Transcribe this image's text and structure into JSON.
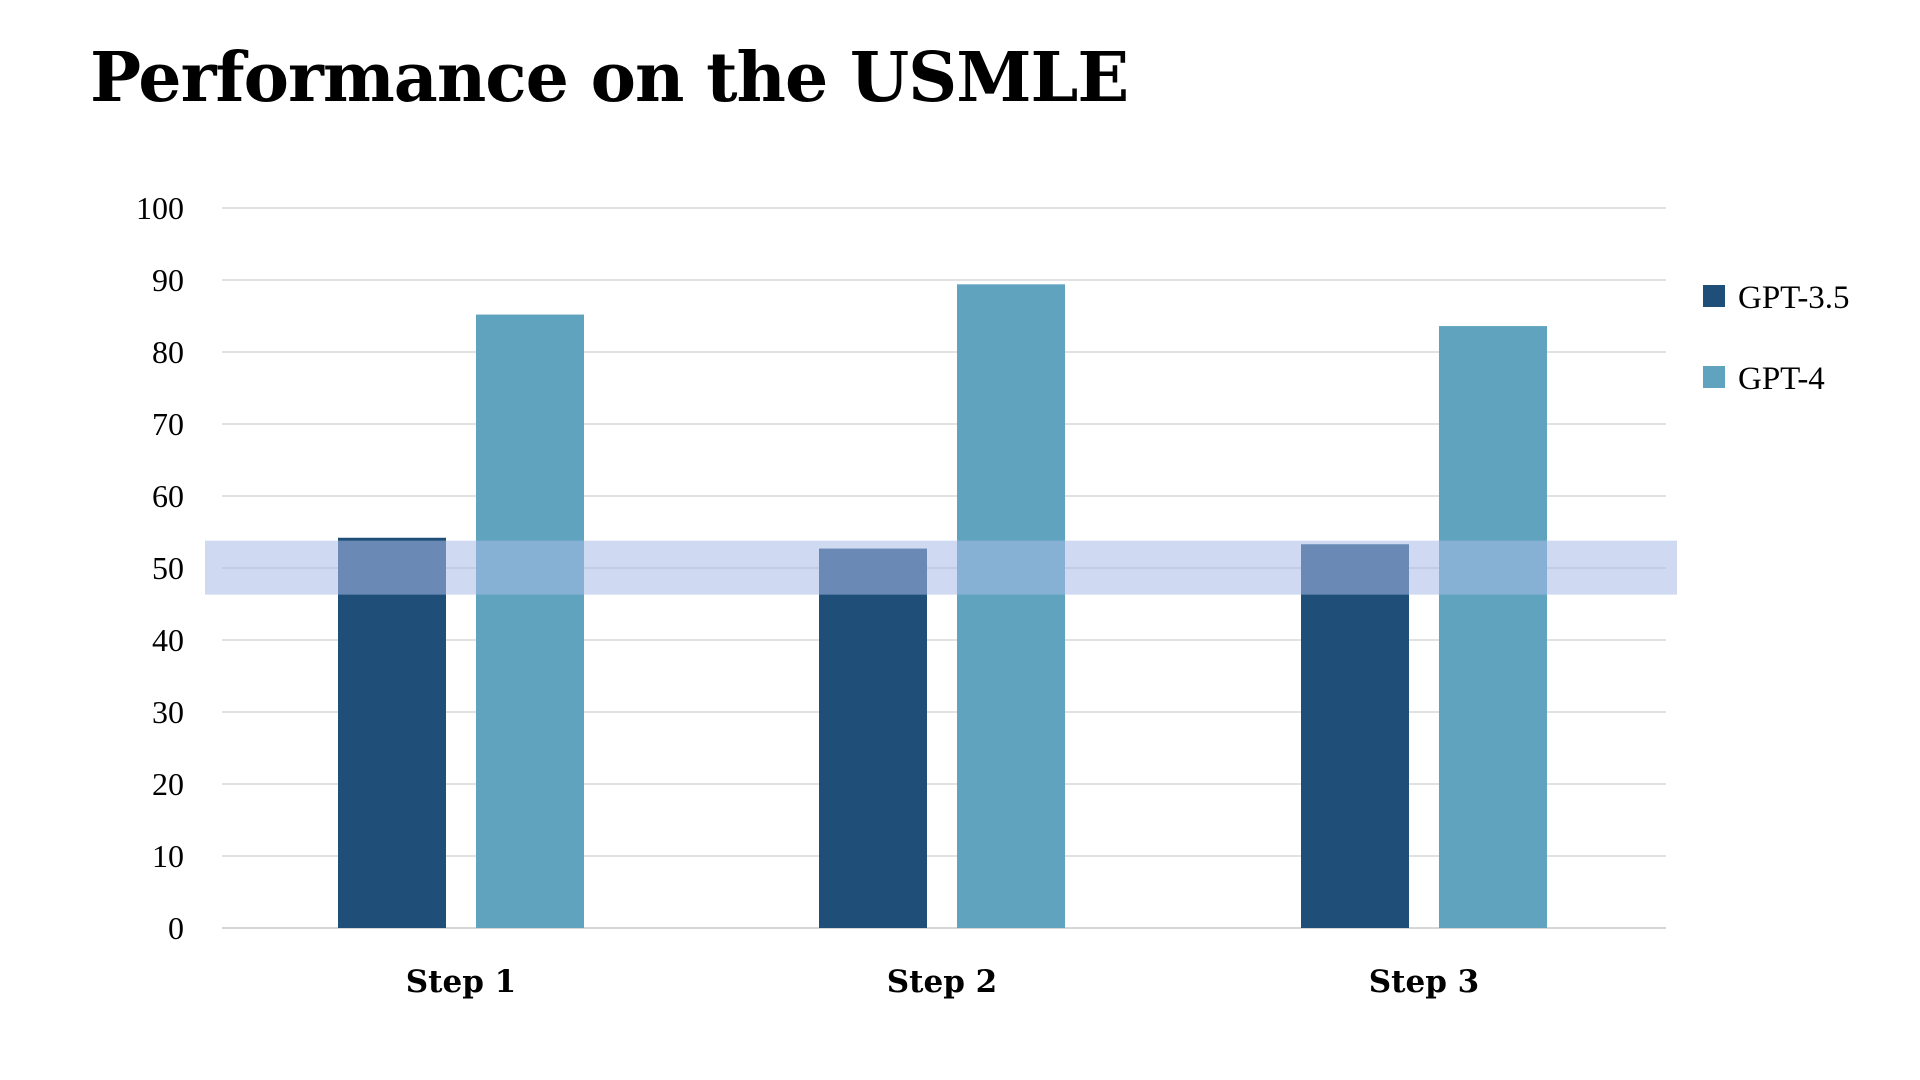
{
  "chart_data": {
    "type": "bar",
    "title": "Performance on the USMLE",
    "xlabel": "",
    "ylabel": "",
    "categories": [
      "Step 1",
      "Step 2",
      "Step 3"
    ],
    "series": [
      {
        "name": "GPT-3.5",
        "color": "#1f4e79",
        "values": [
          54.2,
          52.7,
          53.3
        ]
      },
      {
        "name": "GPT-4",
        "color": "#5fa3bf",
        "values": [
          85.2,
          89.4,
          83.6
        ]
      }
    ],
    "ylim": [
      0,
      100
    ],
    "yticks": [
      0,
      10,
      20,
      30,
      40,
      50,
      60,
      70,
      80,
      90,
      100
    ],
    "grid": true,
    "legend_position": "right",
    "highlight_band": {
      "from": 46.3,
      "to": 53.8,
      "color": "#a7bbe8"
    }
  }
}
